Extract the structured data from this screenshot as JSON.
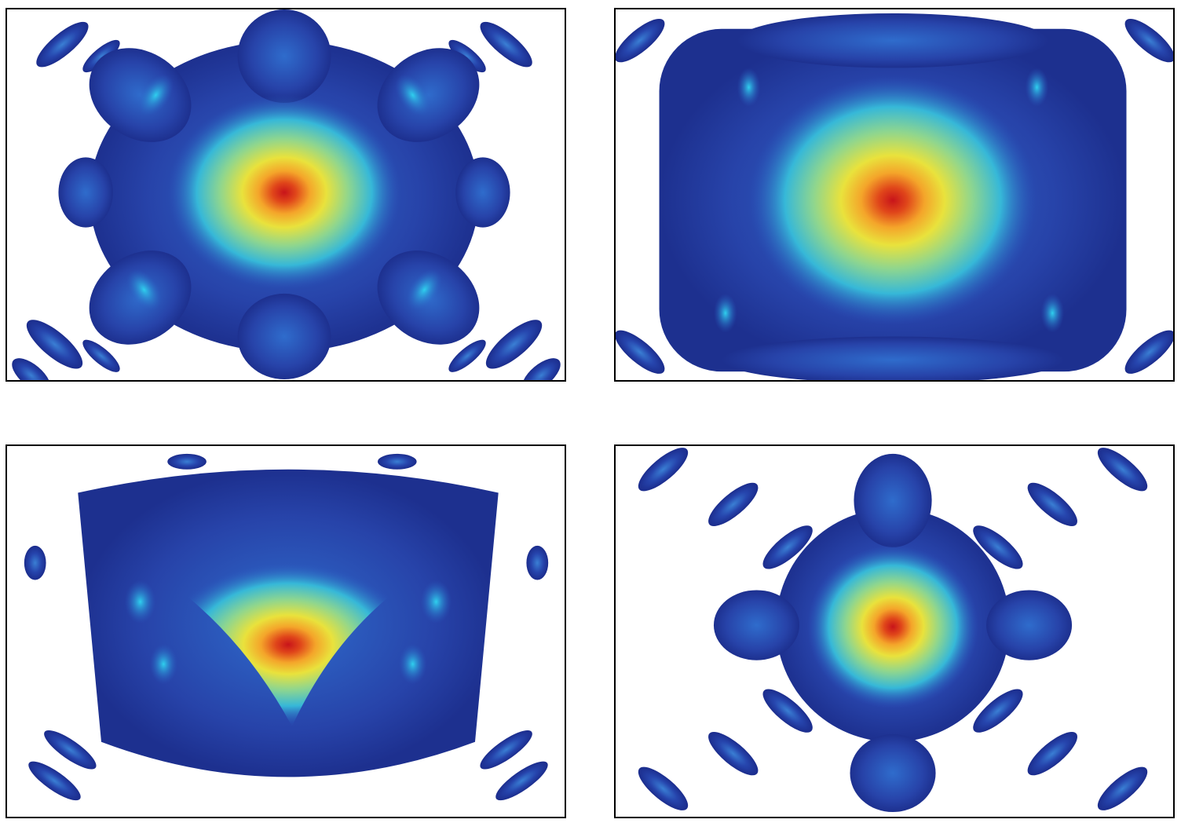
{
  "figure": {
    "panels": [
      {
        "id": "top-left",
        "pattern": "hexagonal-six-lobe",
        "peak_color": "#d8261b"
      },
      {
        "id": "top-right",
        "pattern": "broad-rounded-square",
        "peak_color": "#e0461a"
      },
      {
        "id": "bottom-left",
        "pattern": "triangular-fan",
        "peak_color": "#e04a16"
      },
      {
        "id": "bottom-right",
        "pattern": "four-arm-cross",
        "peak_color": "#d81f16"
      }
    ],
    "colormap": [
      "#1c2f94",
      "#2a55c0",
      "#25b7e0",
      "#7fd69a",
      "#e4e23a",
      "#f3a524",
      "#d8261b"
    ]
  }
}
